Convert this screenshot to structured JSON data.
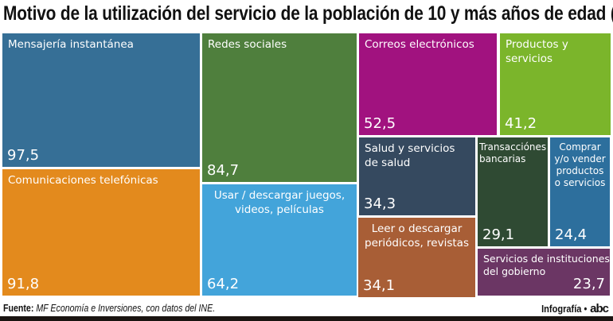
{
  "chart_data": {
    "type": "treemap",
    "title": "Motivo de la utilización del servicio de la población de 10 y más años de edad (%)",
    "items": [
      {
        "label": "Mensajería instantánea",
        "value": 97.5,
        "display": "97,5",
        "color": "#366f96"
      },
      {
        "label": "Comunicaciones telefónicas",
        "value": 91.8,
        "display": "91,8",
        "color": "#e38a1d"
      },
      {
        "label": "Redes sociales",
        "value": 84.7,
        "display": "84,7",
        "color": "#4f7f3d"
      },
      {
        "label": "Usar / descargar juegos, videos, películas",
        "value": 64.2,
        "display": "64,2",
        "color": "#43a4da"
      },
      {
        "label": "Correos electrónicos",
        "value": 52.5,
        "display": "52,5",
        "color": "#a1127f"
      },
      {
        "label": "Productos y servicios",
        "value": 41.2,
        "display": "41,2",
        "color": "#7bb52b"
      },
      {
        "label": "Salud y servicios de salud",
        "value": 34.3,
        "display": "34,3",
        "color": "#35495f"
      },
      {
        "label": "Leer o descargar periódicos, revistas",
        "value": 34.1,
        "display": "34,1",
        "color": "#a85e36"
      },
      {
        "label": "Transacciónes bancarias",
        "value": 29.1,
        "display": "29,1",
        "color": "#2f4a33"
      },
      {
        "label": "Comprar y/o vender productos o servicios",
        "value": 24.4,
        "display": "24,4",
        "color": "#2d6f9d"
      },
      {
        "label": "Servicios de instituciones del gobierno",
        "value": 23.7,
        "display": "23,7",
        "color": "#6b3664"
      }
    ]
  },
  "footer": {
    "source_label": "Fuente:",
    "source_text": "MF Economía e Inversiones, con datos del INE.",
    "credit": "Infografía •",
    "logo": "abc"
  }
}
